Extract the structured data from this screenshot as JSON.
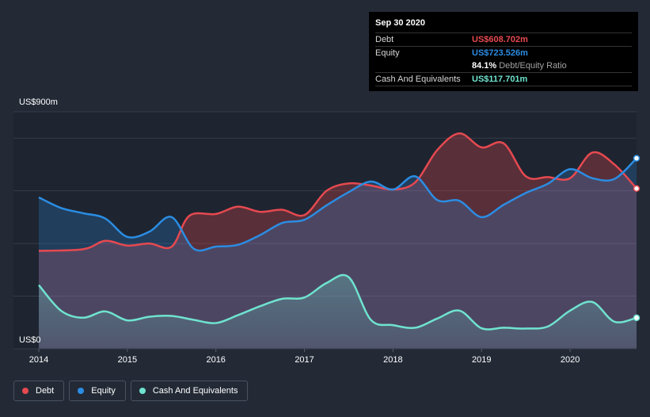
{
  "chart_data": {
    "type": "area",
    "y_top_label": "US$900m",
    "y_bottom_label": "US$0",
    "ylim": [
      0,
      900
    ],
    "xlim": [
      2014.0,
      2020.75
    ],
    "x_ticks": [
      "2014",
      "2015",
      "2016",
      "2017",
      "2018",
      "2019",
      "2020"
    ],
    "series": [
      {
        "name": "Debt",
        "color": "#e64950",
        "points": [
          [
            2014.0,
            372
          ],
          [
            2014.5,
            378
          ],
          [
            2014.75,
            410
          ],
          [
            2015.0,
            392
          ],
          [
            2015.25,
            400
          ],
          [
            2015.5,
            388
          ],
          [
            2015.7,
            505
          ],
          [
            2016.0,
            512
          ],
          [
            2016.25,
            540
          ],
          [
            2016.5,
            520
          ],
          [
            2016.75,
            528
          ],
          [
            2017.0,
            508
          ],
          [
            2017.25,
            600
          ],
          [
            2017.5,
            628
          ],
          [
            2017.75,
            620
          ],
          [
            2018.0,
            605
          ],
          [
            2018.25,
            632
          ],
          [
            2018.5,
            755
          ],
          [
            2018.75,
            818
          ],
          [
            2019.0,
            765
          ],
          [
            2019.25,
            780
          ],
          [
            2019.5,
            655
          ],
          [
            2019.75,
            652
          ],
          [
            2020.0,
            648
          ],
          [
            2020.25,
            745
          ],
          [
            2020.5,
            700
          ],
          [
            2020.75,
            608.702
          ]
        ]
      },
      {
        "name": "Equity",
        "color": "#2b8de3",
        "points": [
          [
            2014.0,
            575
          ],
          [
            2014.25,
            535
          ],
          [
            2014.5,
            515
          ],
          [
            2014.75,
            495
          ],
          [
            2015.0,
            425
          ],
          [
            2015.25,
            445
          ],
          [
            2015.5,
            500
          ],
          [
            2015.75,
            380
          ],
          [
            2016.0,
            388
          ],
          [
            2016.25,
            395
          ],
          [
            2016.5,
            432
          ],
          [
            2016.75,
            478
          ],
          [
            2017.0,
            490
          ],
          [
            2017.25,
            545
          ],
          [
            2017.5,
            595
          ],
          [
            2017.75,
            635
          ],
          [
            2018.0,
            605
          ],
          [
            2018.25,
            655
          ],
          [
            2018.5,
            565
          ],
          [
            2018.75,
            562
          ],
          [
            2019.0,
            500
          ],
          [
            2019.25,
            547
          ],
          [
            2019.5,
            592
          ],
          [
            2019.75,
            627
          ],
          [
            2020.0,
            682
          ],
          [
            2020.25,
            648
          ],
          [
            2020.5,
            645
          ],
          [
            2020.75,
            723.526
          ]
        ]
      },
      {
        "name": "Cash And Equivalents",
        "color": "#6fe3cf",
        "points": [
          [
            2014.0,
            242
          ],
          [
            2014.25,
            145
          ],
          [
            2014.5,
            118
          ],
          [
            2014.75,
            142
          ],
          [
            2015.0,
            108
          ],
          [
            2015.25,
            122
          ],
          [
            2015.5,
            125
          ],
          [
            2015.75,
            110
          ],
          [
            2016.0,
            98
          ],
          [
            2016.25,
            128
          ],
          [
            2016.5,
            162
          ],
          [
            2016.75,
            190
          ],
          [
            2017.0,
            195
          ],
          [
            2017.25,
            250
          ],
          [
            2017.5,
            272
          ],
          [
            2017.75,
            110
          ],
          [
            2018.0,
            90
          ],
          [
            2018.25,
            80
          ],
          [
            2018.5,
            115
          ],
          [
            2018.75,
            145
          ],
          [
            2019.0,
            78
          ],
          [
            2019.25,
            80
          ],
          [
            2019.5,
            77
          ],
          [
            2019.75,
            85
          ],
          [
            2020.0,
            145
          ],
          [
            2020.25,
            178
          ],
          [
            2020.5,
            103
          ],
          [
            2020.75,
            117.701
          ]
        ]
      }
    ]
  },
  "tooltip": {
    "date": "Sep 30 2020",
    "rows": {
      "debt": {
        "label": "Debt",
        "value": "US$608.702m",
        "color": "#e64950"
      },
      "equity": {
        "label": "Equity",
        "value": "US$723.526m",
        "color": "#2b8de3"
      },
      "ratio": {
        "value": "84.1%",
        "label": "Debt/Equity Ratio"
      },
      "cash": {
        "label": "Cash And Equivalents",
        "value": "US$117.701m",
        "color": "#6fe3cf"
      }
    }
  },
  "legend": [
    {
      "label": "Debt",
      "color": "#e64950"
    },
    {
      "label": "Equity",
      "color": "#2b8de3"
    },
    {
      "label": "Cash And Equivalents",
      "color": "#6fe3cf"
    }
  ]
}
